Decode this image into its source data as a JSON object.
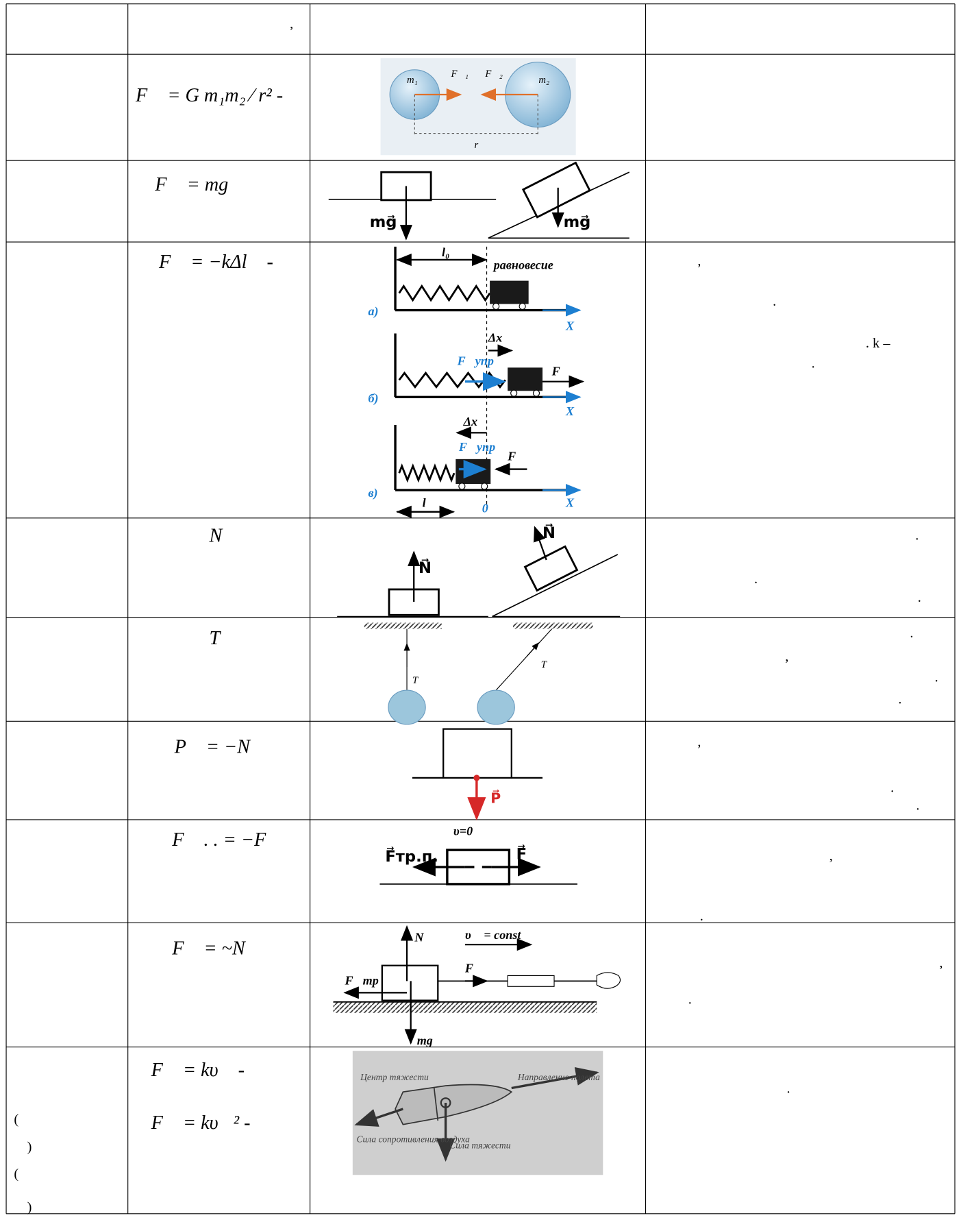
{
  "table": {
    "rows": [
      {
        "c2": [
          ","
        ]
      },
      {
        "c2": [
          "F⃗   = G m₁m₂ ⁄ r² -"
        ],
        "fig": [
          "m₁",
          "F⃗₁",
          "F⃗₂",
          "m₂",
          "r"
        ]
      },
      {
        "c2": [
          "F⃗    = mg⃗"
        ],
        "fig": [
          "mg⃗",
          "mg⃗"
        ]
      },
      {
        "c2": [
          "F⃗    = −kΔl⃗  -"
        ],
        "fig": [
          "l₀",
          "равновесие",
          "а)",
          "X",
          "Δx⃗",
          "F⃗упр",
          "F⃗",
          "б)",
          "X",
          "Δx⃗",
          "F⃗упр",
          "F⃗",
          "в)",
          "l",
          "0",
          "X"
        ],
        "c4": [
          ",",
          ".",
          ". k –",
          "."
        ]
      },
      {
        "c2": [
          "N⃗"
        ],
        "fig": [
          "N⃗",
          "N⃗"
        ],
        "c4": [
          ".",
          ".",
          "."
        ]
      },
      {
        "c2": [
          "T⃗"
        ],
        "fig": [
          "T⃗",
          "T⃗"
        ],
        "c4": [
          ".",
          ",",
          ".",
          "."
        ]
      },
      {
        "c2": [
          "P⃗ = −N⃗"
        ],
        "fig": [
          "P⃗"
        ],
        "c4": [
          ",",
          ".",
          "."
        ]
      },
      {
        "c2": [
          "F⃗  . . = −F⃗"
        ],
        "fig": [
          "υ=0",
          "F⃗тр.п.",
          "F⃗"
        ],
        "c4": [
          ",",
          "."
        ]
      },
      {
        "c2": [
          "F⃗    = ~N⃗"
        ],
        "fig": [
          "N⃗",
          "υ⃗ = const",
          "F⃗тр",
          "F⃗",
          "mg⃗"
        ],
        "c4": [
          ",",
          "."
        ]
      },
      {
        "c1": [
          "(",
          ")",
          "(",
          ")"
        ],
        "c2": [
          "F⃗  = kυ⃗ -",
          "F⃗  = kυ⃗² -"
        ],
        "fig": [
          "Центр тяжести",
          "Направление полета",
          "Сила сопротивления воздуха",
          "Сила тяжести"
        ],
        "c4": [
          "."
        ]
      }
    ]
  }
}
